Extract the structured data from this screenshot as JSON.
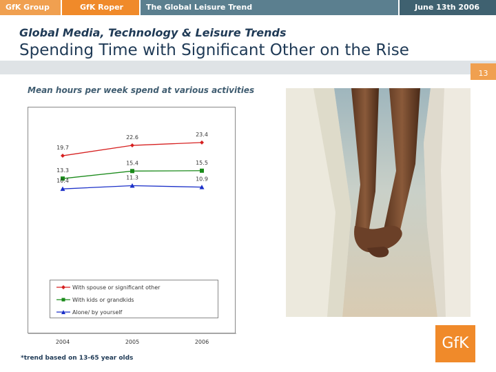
{
  "header": {
    "tabs": [
      "GfK Group",
      "GfK Roper",
      "The Global Leisure Trend",
      "June 13th 2006"
    ]
  },
  "subtitle": "Global Media, Technology & Leisure Trends",
  "title": "Spending Time with Significant Other on the Rise",
  "page_number": "13",
  "footnote": "*trend based on 13-65 year olds",
  "logo_text": "GfK",
  "photo_icon": "holding-hands-photo",
  "colors": {
    "spouse": "#d62020",
    "kids": "#1a8a1a",
    "alone": "#1a2fc8",
    "accent": "#f08a2a"
  },
  "chart_data": {
    "type": "line",
    "title": "Mean hours per week spend at various activities",
    "categories": [
      "2004",
      "2005",
      "2006"
    ],
    "series": [
      {
        "name": "With spouse or significant other",
        "values": [
          19.7,
          22.6,
          23.4
        ],
        "labels": [
          "19.7",
          "22.6",
          "23.4"
        ],
        "marker": "diamond"
      },
      {
        "name": "With kids or grandkids",
        "values": [
          13.3,
          15.4,
          15.5
        ],
        "labels": [
          "13.3",
          "15.4",
          "15.5"
        ],
        "marker": "square"
      },
      {
        "name": "Alone/ by yourself",
        "values": [
          10.4,
          11.3,
          10.9
        ],
        "labels": [
          "10.4",
          "11.3",
          "10.9"
        ],
        "marker": "triangle"
      }
    ],
    "legend": "bottom",
    "grid": false
  }
}
